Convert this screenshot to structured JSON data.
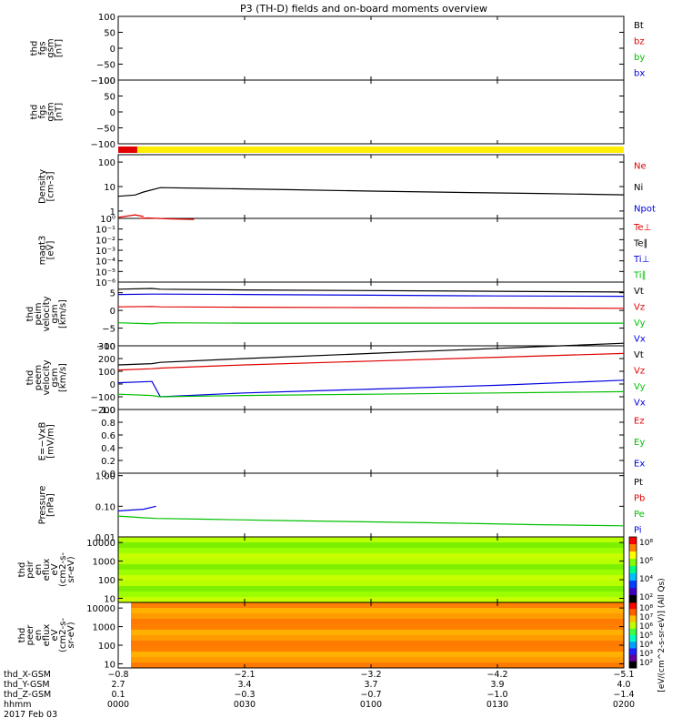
{
  "title": "P3 (TH-D) fields and on-board moments overview",
  "colors": {
    "black": "#000000",
    "red": "#e00000",
    "green": "#00c000",
    "blue": "#0000e0",
    "yellow": "#ffee00"
  },
  "panels": [
    {
      "id": "fgs-btot",
      "ylabel": [
        "thd",
        "fgs",
        "gsm",
        "[nT]"
      ],
      "yticks": [
        {
          "v": 100,
          "t": "100"
        },
        {
          "v": 50,
          "t": "50"
        },
        {
          "v": 0,
          "t": "0"
        },
        {
          "v": -50,
          "t": "−50"
        },
        {
          "v": -100,
          "t": "−100"
        }
      ],
      "ymin": -100,
      "ymax": 100,
      "scale": "linear",
      "legend": [
        {
          "t": "Bt",
          "c": "black"
        },
        {
          "t": "bz",
          "c": "red"
        },
        {
          "t": "by",
          "c": "green"
        },
        {
          "t": "bx",
          "c": "blue"
        }
      ]
    },
    {
      "id": "fgs-gsm",
      "ylabel": [
        "thd",
        "fgs",
        "gsm",
        "[nT]"
      ],
      "yticks": [
        {
          "v": 100,
          "t": "100"
        },
        {
          "v": 50,
          "t": "50"
        },
        {
          "v": 0,
          "t": "0"
        },
        {
          "v": -50,
          "t": "−50"
        },
        {
          "v": -100,
          "t": "−100"
        }
      ],
      "ymin": -100,
      "ymax": 100,
      "scale": "linear",
      "legend": []
    },
    {
      "id": "density",
      "ylabel": [
        "Density",
        "[cm-3]"
      ],
      "yticks": [
        {
          "v": 100,
          "t": "100"
        },
        {
          "v": 10,
          "t": "10"
        },
        {
          "v": 1,
          "t": "1"
        }
      ],
      "ymin": 0.5,
      "ymax": 200,
      "scale": "log",
      "legend": [
        {
          "t": "Ne",
          "c": "red"
        },
        {
          "t": "Ni",
          "c": "black"
        },
        {
          "t": "Npot",
          "c": "blue"
        }
      ]
    },
    {
      "id": "temperature",
      "ylabel": [
        "magt3",
        "[eV]"
      ],
      "yticks": [
        {
          "v": 1,
          "t": "10⁰"
        },
        {
          "v": 0.1,
          "t": "10⁻¹"
        },
        {
          "v": 0.01,
          "t": "10⁻²"
        },
        {
          "v": 0.001,
          "t": "10⁻³"
        },
        {
          "v": 0.0001,
          "t": "10⁻⁴"
        },
        {
          "v": 1e-05,
          "t": "10⁻⁵"
        },
        {
          "v": 1e-06,
          "t": "10⁻⁶"
        }
      ],
      "ymin": 1e-06,
      "ymax": 1,
      "scale": "log",
      "legend": [
        {
          "t": "Te⊥",
          "c": "red"
        },
        {
          "t": "Te∥",
          "c": "black"
        },
        {
          "t": "Ti⊥",
          "c": "blue"
        },
        {
          "t": "Ti∥",
          "c": "green"
        }
      ]
    },
    {
      "id": "peim-velocity",
      "ylabel": [
        "thd",
        "peim",
        "velocity",
        "gsm",
        "[km/s]"
      ],
      "yticks": [
        {
          "v": 5,
          "t": "5"
        },
        {
          "v": 0,
          "t": "0"
        },
        {
          "v": -5,
          "t": "−5"
        },
        {
          "v": -10,
          "t": "−10"
        }
      ],
      "ymin": -10,
      "ymax": 8,
      "scale": "linear",
      "legend": [
        {
          "t": "Vt",
          "c": "black"
        },
        {
          "t": "Vz",
          "c": "red"
        },
        {
          "t": "Vy",
          "c": "green"
        },
        {
          "t": "Vx",
          "c": "blue"
        }
      ]
    },
    {
      "id": "peem-velocity",
      "ylabel": [
        "thd",
        "peem",
        "velocity",
        "gsm",
        "[km/s]"
      ],
      "yticks": [
        {
          "v": 300,
          "t": "300"
        },
        {
          "v": 200,
          "t": "200"
        },
        {
          "v": 100,
          "t": "100"
        },
        {
          "v": 0,
          "t": "0"
        },
        {
          "v": -100,
          "t": "−100"
        },
        {
          "v": -200,
          "t": "−200"
        }
      ],
      "ymin": -200,
      "ymax": 300,
      "scale": "linear",
      "legend": [
        {
          "t": "Vt",
          "c": "black"
        },
        {
          "t": "Vz",
          "c": "red"
        },
        {
          "t": "Vy",
          "c": "green"
        },
        {
          "t": "Vx",
          "c": "blue"
        }
      ]
    },
    {
      "id": "efield",
      "ylabel": [
        "E=−VxB",
        "[mV/m]"
      ],
      "yticks": [
        {
          "v": 1,
          "t": "1.0"
        },
        {
          "v": 0.8,
          "t": "0.8"
        },
        {
          "v": 0.6,
          "t": "0.6"
        },
        {
          "v": 0.4,
          "t": "0.4"
        },
        {
          "v": 0.2,
          "t": "0.2"
        },
        {
          "v": 0,
          "t": "0.0"
        }
      ],
      "ymin": 0,
      "ymax": 1,
      "scale": "linear",
      "legend": [
        {
          "t": "Ez",
          "c": "red"
        },
        {
          "t": "Ey",
          "c": "green"
        },
        {
          "t": "Ex",
          "c": "blue"
        }
      ]
    },
    {
      "id": "pressure",
      "ylabel": [
        "Pressure",
        "[nPa]"
      ],
      "yticks": [
        {
          "v": 1,
          "t": "1.00"
        },
        {
          "v": 0.1,
          "t": "0.10"
        },
        {
          "v": 0.01,
          "t": "0.01"
        }
      ],
      "ymin": 0.01,
      "ymax": 1.2,
      "scale": "log",
      "legend": [
        {
          "t": "Pt",
          "c": "black"
        },
        {
          "t": "Pb",
          "c": "red"
        },
        {
          "t": "Pe",
          "c": "green"
        },
        {
          "t": "Pi",
          "c": "blue"
        }
      ]
    },
    {
      "id": "peir-spec",
      "ylabel": [
        "thd",
        "peir",
        "en",
        "eflux",
        "eV",
        "(cm2-s-",
        "sr-eV)"
      ],
      "yticks": [
        {
          "v": 10000,
          "t": "10000"
        },
        {
          "v": 1000,
          "t": "1000"
        },
        {
          "v": 100,
          "t": "100"
        },
        {
          "v": 10,
          "t": "10"
        }
      ],
      "ymin": 6,
      "ymax": 20000,
      "scale": "log",
      "legend": [],
      "colorbar": {
        "ticks": [
          "10⁸",
          "10⁶",
          "10⁴",
          "10²"
        ],
        "label": "[eV/(cm^2-s-sr-eV)] (All Qs)"
      }
    },
    {
      "id": "peer-spec",
      "ylabel": [
        "thd",
        "peer",
        "en",
        "eflux",
        "eV",
        "(cm2-s-",
        "sr-eV)"
      ],
      "yticks": [
        {
          "v": 10000,
          "t": "10000"
        },
        {
          "v": 1000,
          "t": "1000"
        },
        {
          "v": 100,
          "t": "100"
        },
        {
          "v": 10,
          "t": "10"
        }
      ],
      "ymin": 6,
      "ymax": 20000,
      "scale": "log",
      "legend": [],
      "colorbar": {
        "ticks": [
          "10⁸",
          "10⁷",
          "10⁶",
          "10⁵",
          "10⁴",
          "10³",
          "10²"
        ],
        "label": "[eV/(cm^2-s-sr-eV)] (All Qs)"
      }
    }
  ],
  "flag_bar": {
    "red_end_min": 4.5
  },
  "xaxis": {
    "min_minutes": 0,
    "max_minutes": 120,
    "tick_minutes": [
      0,
      30,
      60,
      90,
      120
    ],
    "rows": [
      {
        "label": "thd_X-GSM",
        "values": [
          "−0.8",
          "−2.1",
          "−3.2",
          "−4.2",
          "−5.1"
        ]
      },
      {
        "label": "thd_Y-GSM",
        "values": [
          "2.7",
          "3.4",
          "3.7",
          "3.9",
          "4.0"
        ]
      },
      {
        "label": "thd_Z-GSM",
        "values": [
          "0.1",
          "−0.3",
          "−0.7",
          "−1.0",
          "−1.4"
        ]
      },
      {
        "label": "hhmm",
        "values": [
          "0000",
          "0030",
          "0100",
          "0130",
          "0200"
        ]
      }
    ],
    "date_label": "2017 Feb 03"
  },
  "chart_data": [
    {
      "type": "line",
      "panel": "density",
      "x_minutes": [
        0,
        4,
        6,
        10,
        20,
        40,
        60,
        80,
        100,
        120
      ],
      "series": [
        {
          "name": "Ni",
          "color": "black",
          "values": [
            4,
            4.5,
            6,
            9,
            8.5,
            7.5,
            6.5,
            5.8,
            5.2,
            4.6
          ]
        },
        {
          "name": "Ne",
          "color": "red",
          "values": [
            0.55,
            0.7,
            0.6,
            null,
            null,
            null,
            null,
            null,
            null,
            null
          ]
        }
      ]
    },
    {
      "type": "line",
      "panel": "temperature",
      "x_minutes": [
        5,
        7,
        12,
        18
      ],
      "series": [
        {
          "name": "Te⊥",
          "color": "red",
          "values": [
            1,
            1.1,
            0.9,
            0.8
          ]
        }
      ]
    },
    {
      "type": "line",
      "panel": "peim-velocity",
      "x_minutes": [
        0,
        8,
        10,
        30,
        60,
        90,
        120
      ],
      "series": [
        {
          "name": "Vt",
          "color": "black",
          "values": [
            6,
            6.2,
            6,
            5.8,
            5.6,
            5.4,
            5.2
          ]
        },
        {
          "name": "Vx",
          "color": "blue",
          "values": [
            4.5,
            4.6,
            4.6,
            4.5,
            4.3,
            4.1,
            4.0
          ]
        },
        {
          "name": "Vz",
          "color": "red",
          "values": [
            1,
            1.1,
            1.0,
            0.9,
            0.8,
            0.7,
            0.6
          ]
        },
        {
          "name": "Vy",
          "color": "green",
          "values": [
            -3.5,
            -3.8,
            -3.5,
            -3.6,
            -3.6,
            -3.6,
            -3.6
          ]
        }
      ]
    },
    {
      "type": "line",
      "panel": "peem-velocity",
      "x_minutes": [
        0,
        8,
        10,
        30,
        60,
        90,
        120
      ],
      "series": [
        {
          "name": "Vt",
          "color": "black",
          "values": [
            150,
            160,
            170,
            200,
            240,
            280,
            320
          ]
        },
        {
          "name": "Vz",
          "color": "red",
          "values": [
            110,
            120,
            125,
            150,
            180,
            210,
            240
          ]
        },
        {
          "name": "Vx",
          "color": "blue",
          "values": [
            10,
            20,
            -100,
            -70,
            -40,
            -10,
            30
          ]
        },
        {
          "name": "Vy",
          "color": "green",
          "values": [
            -80,
            -90,
            -100,
            -90,
            -80,
            -70,
            -60
          ]
        }
      ]
    },
    {
      "type": "line",
      "panel": "pressure",
      "x_minutes": [
        0,
        3,
        6,
        9,
        20,
        40,
        60,
        80,
        100,
        120
      ],
      "series": [
        {
          "name": "Pi",
          "color": "blue",
          "values": [
            0.07,
            0.075,
            0.08,
            0.1,
            null,
            null,
            null,
            null,
            null,
            null
          ]
        },
        {
          "name": "Pe",
          "color": "green",
          "values": [
            0.048,
            0.045,
            0.042,
            0.04,
            0.038,
            0.034,
            0.031,
            0.028,
            0.025,
            0.023
          ]
        }
      ]
    },
    {
      "type": "heatmap",
      "panel": "peir-spec",
      "description_color": "green-yellow flux across all energies"
    },
    {
      "type": "heatmap",
      "panel": "peer-spec",
      "description_color": "orange-yellow flux across all energies"
    }
  ]
}
